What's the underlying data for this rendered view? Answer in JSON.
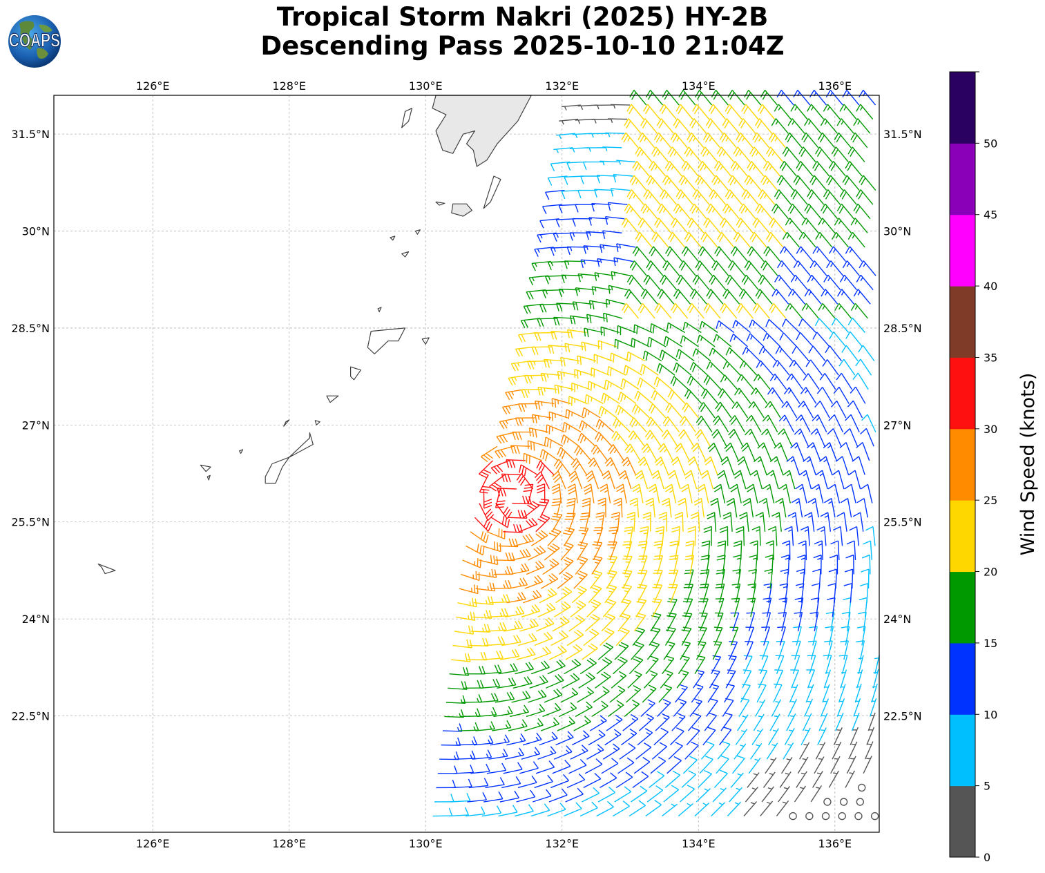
{
  "title": {
    "line1": "Tropical Storm Nakri (2025) HY-2B",
    "line2": "Descending Pass 2025-10-10 21:04Z"
  },
  "logo": {
    "text": "COAPS",
    "icon": "globe-logo"
  },
  "map": {
    "lon_range": [
      124.55,
      136.65
    ],
    "lat_range": [
      20.7,
      32.1
    ],
    "lon_ticks": [
      {
        "value": 126,
        "label": "126°E"
      },
      {
        "value": 128,
        "label": "128°E"
      },
      {
        "value": 130,
        "label": "130°E"
      },
      {
        "value": 132,
        "label": "132°E"
      },
      {
        "value": 134,
        "label": "134°E"
      },
      {
        "value": 136,
        "label": "136°E"
      }
    ],
    "lat_ticks": [
      {
        "value": 22.5,
        "label": "22.5°N"
      },
      {
        "value": 24,
        "label": "24°N"
      },
      {
        "value": 25.5,
        "label": "25.5°N"
      },
      {
        "value": 27,
        "label": "27°N"
      },
      {
        "value": 28.5,
        "label": "28.5°N"
      },
      {
        "value": 30,
        "label": "30°N"
      },
      {
        "value": 31.5,
        "label": "31.5°N"
      }
    ],
    "grid": true,
    "land_color": "#e8e8e8",
    "coast_color": "#404040",
    "storm_center": {
      "lon": 131.3,
      "lat": 25.9
    }
  },
  "colorbar": {
    "title": "Wind Speed (knots)",
    "ticks": [
      "0",
      "5",
      "10",
      "15",
      "20",
      "25",
      "30",
      "35",
      "40",
      "45",
      "50"
    ],
    "colors": [
      "#555555",
      "#00bfff",
      "#0033ff",
      "#009900",
      "#ffd700",
      "#ff8c00",
      "#ff1010",
      "#803a28",
      "#ff00ff",
      "#8a00b8",
      "#2a0060"
    ]
  }
}
